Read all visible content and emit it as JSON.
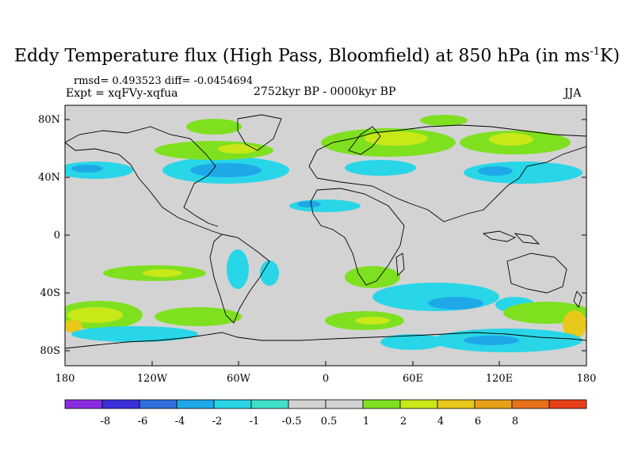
{
  "title": {
    "main": "Eddy Temperature flux (High Pass, Bloomfield) at 850 hPa (in ms",
    "sup": "-1",
    "end": "K)"
  },
  "stats": {
    "rmsd": "rmsd= 0.493523  diff= -0.0454694",
    "expt": "Expt = xqFVy-xqfua",
    "period": "2752kyr BP - 0000kyr BP",
    "season": "JJA"
  },
  "map": {
    "lat_ticks": [
      "80N",
      "40N",
      "0",
      "40S",
      "80S"
    ],
    "lon_ticks": [
      "180",
      "120W",
      "60W",
      "0",
      "60E",
      "120E",
      "180"
    ],
    "background_color": "#d3d3d3"
  },
  "colorbar": {
    "colors": [
      "#8a2be2",
      "#3a2fd9",
      "#2f6fe0",
      "#1fa8e8",
      "#29d6e8",
      "#3fe0c8",
      "#d3d3d3",
      "#d3d3d3",
      "#7fe020",
      "#c8e818",
      "#e8c818",
      "#e8a018",
      "#e87018",
      "#e84018"
    ],
    "labels": [
      "-8",
      "-6",
      "-4",
      "-2",
      "-1",
      "-0.5",
      "0.5",
      "1",
      "2",
      "4",
      "6",
      "8"
    ]
  }
}
